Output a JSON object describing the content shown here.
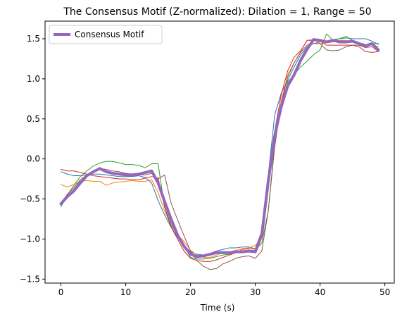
{
  "chart_data": {
    "type": "line",
    "title": "The Consensus Motif (Z-normalized): Dilation = 1, Range = 50",
    "xlabel": "Time (s)",
    "ylabel": "",
    "xlim": [
      -2.45,
      51.45
    ],
    "ylim": [
      -1.55,
      1.72
    ],
    "xticks": [
      0,
      10,
      20,
      30,
      40,
      50
    ],
    "yticks": [
      -1.5,
      -1.0,
      -0.5,
      0.0,
      0.5,
      1.0,
      1.5
    ],
    "xtick_labels": [
      "0",
      "10",
      "20",
      "30",
      "40",
      "50"
    ],
    "ytick_labels": [
      "−1.5",
      "−1.0",
      "−0.5",
      "0.0",
      "0.5",
      "1.0",
      "1.5"
    ],
    "grid": false,
    "legend": {
      "position": "upper-left",
      "entries": [
        "Consensus Motif"
      ]
    },
    "x": [
      0,
      1,
      2,
      3,
      4,
      5,
      6,
      7,
      8,
      9,
      10,
      11,
      12,
      13,
      14,
      15,
      16,
      17,
      18,
      19,
      20,
      21,
      22,
      23,
      24,
      25,
      26,
      27,
      28,
      29,
      30,
      31,
      32,
      33,
      34,
      35,
      36,
      37,
      38,
      39,
      40,
      41,
      42,
      43,
      44,
      45,
      46,
      47,
      48,
      49
    ],
    "series": [
      {
        "name": "",
        "color": "#1f77b4",
        "width": 1,
        "values": [
          -0.16,
          -0.19,
          -0.21,
          -0.21,
          -0.2,
          -0.19,
          -0.19,
          -0.2,
          -0.21,
          -0.22,
          -0.22,
          -0.22,
          -0.21,
          -0.23,
          -0.3,
          -0.52,
          -0.7,
          -0.85,
          -0.98,
          -1.08,
          -1.16,
          -1.19,
          -1.2,
          -1.18,
          -1.15,
          -1.13,
          -1.11,
          -1.11,
          -1.1,
          -1.1,
          -1.12,
          -0.95,
          -0.2,
          0.55,
          0.82,
          0.98,
          1.15,
          1.3,
          1.4,
          1.44,
          1.46,
          1.47,
          1.49,
          1.5,
          1.51,
          1.5,
          1.5,
          1.5,
          1.47,
          1.43
        ]
      },
      {
        "name": "",
        "color": "#ff7f0e",
        "width": 1,
        "values": [
          -0.32,
          -0.35,
          -0.32,
          -0.28,
          -0.27,
          -0.28,
          -0.28,
          -0.33,
          -0.3,
          -0.29,
          -0.28,
          -0.27,
          -0.28,
          -0.28,
          -0.26,
          -0.42,
          -0.65,
          -0.83,
          -0.95,
          -1.03,
          -1.14,
          -1.2,
          -1.23,
          -1.23,
          -1.2,
          -1.17,
          -1.16,
          -1.14,
          -1.12,
          -1.11,
          -1.08,
          -0.98,
          -0.3,
          0.3,
          0.72,
          1.05,
          1.2,
          1.34,
          1.48,
          1.49,
          1.44,
          1.45,
          1.46,
          1.48,
          1.48,
          1.46,
          1.45,
          1.43,
          1.42,
          1.4
        ]
      },
      {
        "name": "",
        "color": "#2ca02c",
        "width": 1,
        "values": [
          -0.6,
          -0.45,
          -0.33,
          -0.22,
          -0.15,
          -0.09,
          -0.05,
          -0.03,
          -0.03,
          -0.05,
          -0.07,
          -0.07,
          -0.08,
          -0.11,
          -0.06,
          -0.06,
          -0.6,
          -0.82,
          -0.95,
          -1.08,
          -1.23,
          -1.25,
          -1.25,
          -1.24,
          -1.22,
          -1.2,
          -1.19,
          -1.17,
          -1.15,
          -1.14,
          -1.14,
          -1.05,
          -0.65,
          0.2,
          0.65,
          0.96,
          1.05,
          1.15,
          1.22,
          1.3,
          1.36,
          1.56,
          1.48,
          1.5,
          1.53,
          1.48,
          1.44,
          1.42,
          1.44,
          1.44
        ]
      },
      {
        "name": "",
        "color": "#d62728",
        "width": 1,
        "values": [
          -0.13,
          -0.15,
          -0.15,
          -0.17,
          -0.19,
          -0.21,
          -0.22,
          -0.23,
          -0.24,
          -0.25,
          -0.25,
          -0.26,
          -0.26,
          -0.24,
          -0.22,
          -0.24,
          -0.6,
          -0.85,
          -1.0,
          -1.15,
          -1.24,
          -1.27,
          -1.28,
          -1.28,
          -1.26,
          -1.23,
          -1.2,
          -1.17,
          -1.13,
          -1.12,
          -1.12,
          -0.9,
          -0.25,
          0.35,
          0.8,
          1.1,
          1.27,
          1.35,
          1.48,
          1.48,
          1.47,
          1.42,
          1.42,
          1.42,
          1.42,
          1.42,
          1.4,
          1.34,
          1.33,
          1.34
        ]
      },
      {
        "name": "",
        "color": "#8c564b",
        "width": 1,
        "values": [
          -0.55,
          -0.44,
          -0.36,
          -0.26,
          -0.2,
          -0.15,
          -0.12,
          -0.13,
          -0.15,
          -0.16,
          -0.18,
          -0.19,
          -0.2,
          -0.2,
          -0.18,
          -0.25,
          -0.2,
          -0.55,
          -0.76,
          -0.96,
          -1.15,
          -1.27,
          -1.34,
          -1.38,
          -1.37,
          -1.31,
          -1.28,
          -1.24,
          -1.22,
          -1.21,
          -1.24,
          -1.15,
          -0.65,
          0.15,
          0.7,
          1.02,
          1.2,
          1.33,
          1.42,
          1.44,
          1.44,
          1.36,
          1.35,
          1.36,
          1.4,
          1.42,
          1.42,
          1.39,
          1.4,
          1.34
        ]
      },
      {
        "name": "Consensus Motif",
        "color": "#9467bd",
        "width": 4,
        "values": [
          -0.56,
          -0.47,
          -0.4,
          -0.3,
          -0.21,
          -0.16,
          -0.12,
          -0.16,
          -0.18,
          -0.19,
          -0.2,
          -0.2,
          -0.19,
          -0.17,
          -0.15,
          -0.3,
          -0.53,
          -0.75,
          -0.95,
          -1.09,
          -1.19,
          -1.22,
          -1.21,
          -1.19,
          -1.17,
          -1.17,
          -1.17,
          -1.16,
          -1.16,
          -1.15,
          -1.16,
          -0.95,
          -0.28,
          0.29,
          0.65,
          0.91,
          1.05,
          1.23,
          1.37,
          1.49,
          1.48,
          1.46,
          1.48,
          1.46,
          1.46,
          1.47,
          1.44,
          1.41,
          1.44,
          1.36
        ]
      }
    ]
  }
}
